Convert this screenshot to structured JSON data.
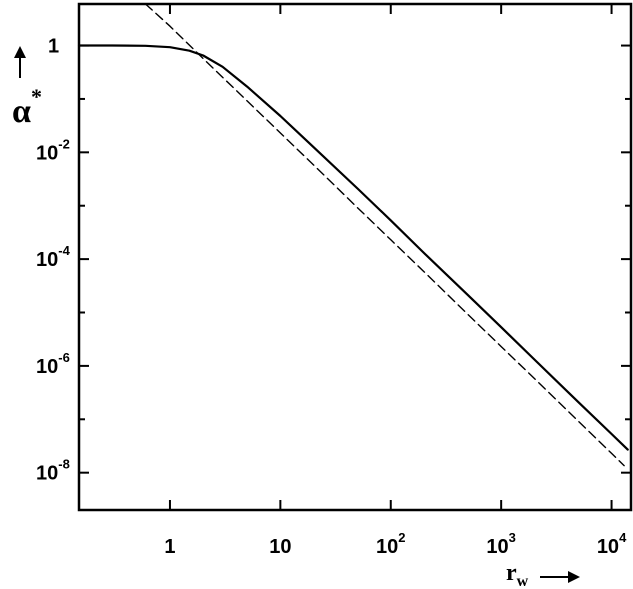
{
  "chart_data": {
    "type": "line",
    "title": "",
    "xlabel": {
      "base": "r",
      "subscript": "w"
    },
    "ylabel": {
      "base": "α",
      "superscript": "*"
    },
    "xscale": "log",
    "yscale": "log",
    "xlim": [
      0.15,
      15000
    ],
    "ylim": [
      2e-09,
      6
    ],
    "grid": false,
    "x_ticks": [
      {
        "value": 1,
        "base": "1",
        "exp": ""
      },
      {
        "value": 10,
        "base": "10",
        "exp": ""
      },
      {
        "value": 100,
        "base": "10",
        "exp": "2"
      },
      {
        "value": 1000,
        "base": "10",
        "exp": "3"
      },
      {
        "value": 10000,
        "base": "10",
        "exp": "4"
      }
    ],
    "y_ticks": [
      {
        "value": 1,
        "base": "1",
        "exp": ""
      },
      {
        "value": 0.01,
        "base": "10",
        "exp": "-2"
      },
      {
        "value": 0.0001,
        "base": "10",
        "exp": "-4"
      },
      {
        "value": 1e-06,
        "base": "10",
        "exp": "-6"
      },
      {
        "value": 1e-08,
        "base": "10",
        "exp": "-8"
      }
    ],
    "y_minor_ticks": [
      0.1,
      0.001,
      1e-05,
      1e-07
    ],
    "series": [
      {
        "style": "solid",
        "x": [
          0.15,
          0.3,
          0.6,
          1,
          1.5,
          2,
          3,
          5,
          10,
          20,
          50,
          100,
          200,
          500,
          1000,
          2000,
          5000,
          10000,
          14000
        ],
        "y": [
          1,
          1,
          0.99,
          0.93,
          0.8,
          0.65,
          0.4,
          0.17,
          0.048,
          0.0125,
          0.0021,
          0.00053,
          0.00013,
          2.12e-05,
          5.3e-06,
          1.32e-06,
          2.1e-07,
          5.31e-08,
          2.7e-08
        ]
      },
      {
        "style": "dashed",
        "x": [
          0.6,
          1,
          2,
          5,
          10,
          20,
          50,
          100,
          200,
          500,
          1000,
          2000,
          5000,
          10000,
          13000
        ],
        "y": [
          6,
          2.3,
          0.57,
          0.092,
          0.023,
          0.0058,
          0.00092,
          0.00023,
          5.8e-05,
          9.2e-06,
          2.3e-06,
          5.8e-07,
          9.2e-08,
          2.3e-08,
          1.36e-08
        ]
      }
    ]
  }
}
